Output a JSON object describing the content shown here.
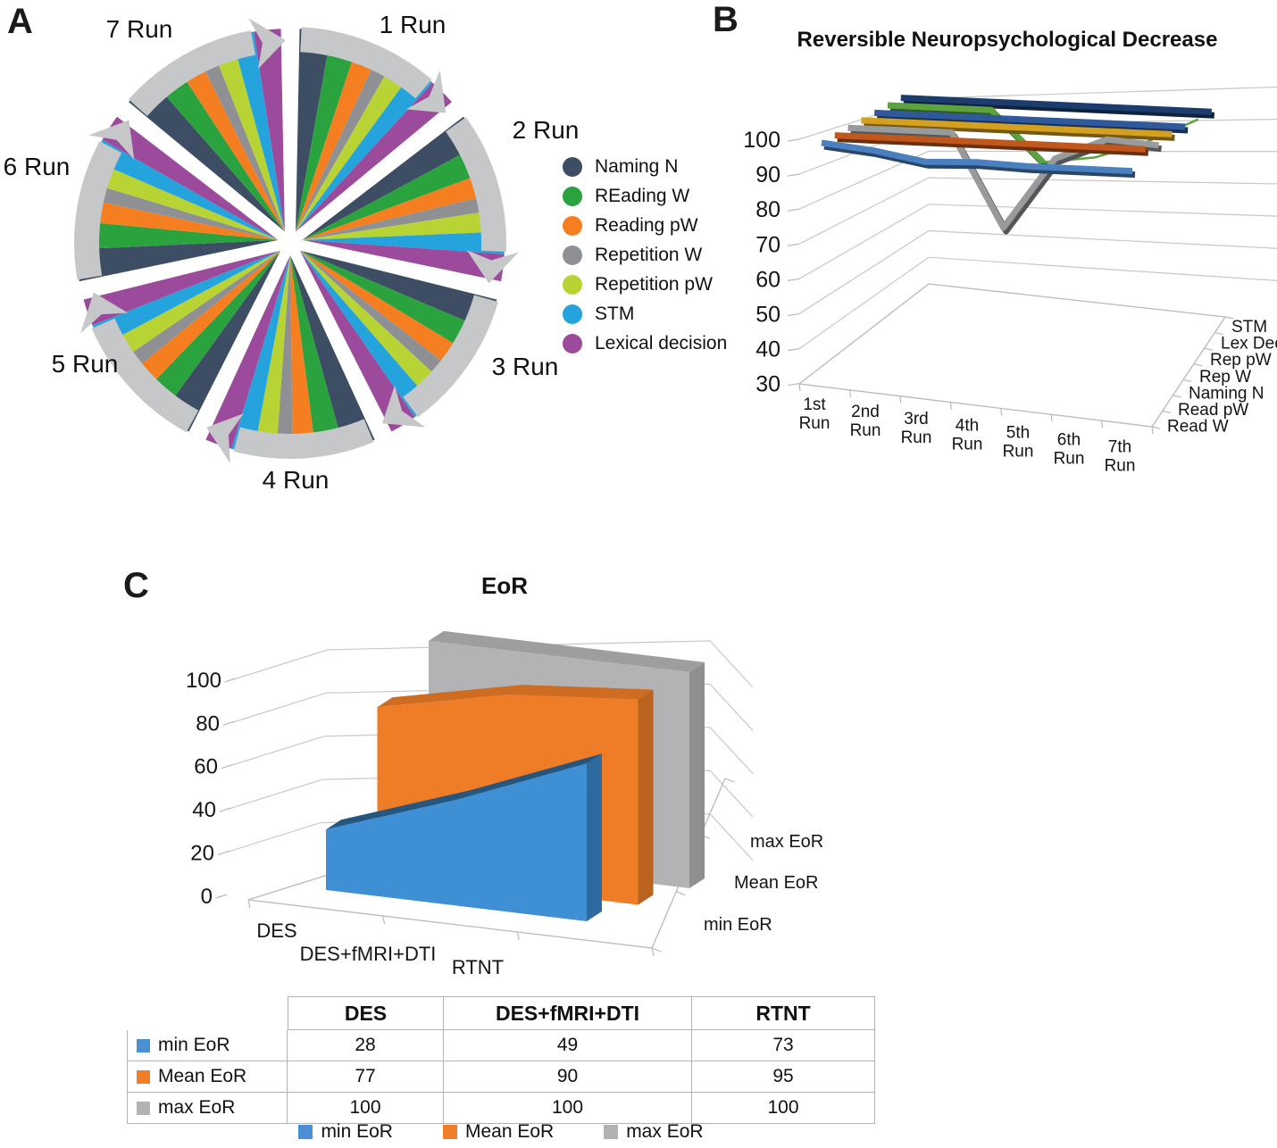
{
  "figure": {
    "background": "#ffffff"
  },
  "panel_labels": {
    "a": "A",
    "b": "B",
    "c": "C"
  },
  "chart_data": [
    {
      "id": "stimulation-task-wheel",
      "type": "pie",
      "title": "",
      "categories": [
        "1 Run",
        "2 Run",
        "3 Run",
        "4 Run",
        "5 Run",
        "6 Run",
        "7 Run"
      ],
      "legend": [
        {
          "name": "Naming N",
          "color": "#3d4d63"
        },
        {
          "name": "REading W",
          "color": "#2aa33e"
        },
        {
          "name": "Reading pW",
          "color": "#f57e20"
        },
        {
          "name": "Repetition W",
          "color": "#8e9093"
        },
        {
          "name": "Repetition pW",
          "color": "#b8d434"
        },
        {
          "name": "STM",
          "color": "#25a3dd"
        },
        {
          "name": "Lexical decision",
          "color": "#9c4a9c"
        }
      ],
      "slice_weights": [
        1.35,
        1.2,
        1.0,
        0.7,
        0.95,
        0.95,
        1.15
      ],
      "ring_color": "#c6c7c9",
      "note": "wheel of 7 runs, each run repeats the same 7 task slices, gray arrows circle clockwise"
    },
    {
      "id": "reversible-neuropsychological-decrease",
      "type": "line",
      "title": "Reversible Neuropsychological Decrease",
      "x": [
        "1st Run",
        "2nd Run",
        "3rd Run",
        "4th Run",
        "5th Run",
        "6th Run",
        "7th Run"
      ],
      "ylim": [
        30,
        100
      ],
      "yticks": [
        100,
        90,
        80,
        70,
        60,
        50,
        40,
        30
      ],
      "series_front_to_back": [
        {
          "name": "Read W",
          "color": "#4a80bf",
          "values": [
            100,
            98.5,
            96,
            96.5,
            96,
            96,
            96
          ]
        },
        {
          "name": "Read pW",
          "color": "#c0571c",
          "values": [
            100,
            100,
            100,
            100,
            100,
            100,
            100
          ]
        },
        {
          "name": "Naming N",
          "color": "#999a9c",
          "values": [
            100,
            100,
            100,
            74,
            94,
            100,
            99
          ]
        },
        {
          "name": "Rep W",
          "color": "#d4a01f",
          "values": [
            100,
            100,
            100,
            100,
            100,
            100,
            100
          ]
        },
        {
          "name": "Rep pW",
          "color": "#30599c",
          "values": [
            100,
            100,
            100,
            100,
            100,
            100,
            100
          ]
        },
        {
          "name": "Lex Dec",
          "color": "#5ba33f",
          "values": [
            100,
            100,
            100,
            86,
            88,
            93,
            100
          ]
        },
        {
          "name": "STM",
          "color": "#1d3c6e",
          "values": [
            100,
            100,
            100,
            100,
            100,
            100,
            100
          ]
        }
      ],
      "depth_labels_back_to_front": [
        "STM",
        "Lex Dec",
        "Rep pW",
        "Rep W",
        "Naming N",
        "Read pW",
        "Read W"
      ],
      "grid": true,
      "legend_position": "depth-axis-right"
    },
    {
      "id": "eor",
      "type": "area",
      "title": "EoR",
      "categories": [
        "DES",
        "DES+fMRI+DTI",
        "RTNT"
      ],
      "ylim": [
        0,
        100
      ],
      "yticks": [
        0,
        20,
        40,
        60,
        80,
        100
      ],
      "series": [
        {
          "name": "min EoR",
          "color": "#3e8fd4",
          "values": [
            28,
            49,
            73
          ]
        },
        {
          "name": "Mean EoR",
          "color": "#ef7d28",
          "values": [
            77,
            90,
            95
          ]
        },
        {
          "name": "max EoR",
          "color": "#b3b3b5",
          "values": [
            100,
            100,
            100
          ]
        }
      ],
      "depth_labels_front_to_back": [
        "min EoR",
        "Mean EoR",
        "max EoR"
      ],
      "grid": true
    },
    {
      "id": "eor-table",
      "type": "table",
      "columns": [
        "",
        "DES",
        "DES+fMRI+DTI",
        "RTNT"
      ],
      "rows": [
        {
          "label": "min EoR",
          "swatch": "#4a90d2",
          "values": [
            28,
            49,
            73
          ]
        },
        {
          "label": "Mean EoR",
          "swatch": "#f07d28",
          "values": [
            77,
            90,
            95
          ]
        },
        {
          "label": "max EoR",
          "swatch": "#b2b2b4",
          "values": [
            100,
            100,
            100
          ]
        }
      ]
    }
  ]
}
